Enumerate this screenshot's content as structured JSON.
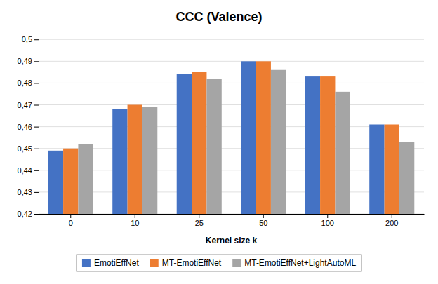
{
  "chart_data": {
    "type": "bar",
    "title": "CCC (Valence)",
    "xlabel": "Kernel size k",
    "categories": [
      0,
      10,
      25,
      50,
      100,
      200
    ],
    "series": [
      {
        "name": "EmotiEffNet",
        "color": "#4472C4",
        "values": [
          0.449,
          0.468,
          0.484,
          0.49,
          0.483,
          0.461
        ]
      },
      {
        "name": "MT-EmotiEffNet",
        "color": "#ED7D31",
        "values": [
          0.45,
          0.47,
          0.485,
          0.49,
          0.483,
          0.461
        ]
      },
      {
        "name": "MT-EmotiEffNet+LightAutoML",
        "color": "#A5A5A5",
        "values": [
          0.452,
          0.469,
          0.482,
          0.486,
          0.476,
          0.453
        ]
      }
    ],
    "ylim": [
      0.42,
      0.502
    ],
    "yticks": [
      {
        "value": 0.42,
        "label": "0,42"
      },
      {
        "value": 0.43,
        "label": "0,43"
      },
      {
        "value": 0.44,
        "label": "0,44"
      },
      {
        "value": 0.45,
        "label": "0,45"
      },
      {
        "value": 0.46,
        "label": "0,46"
      },
      {
        "value": 0.47,
        "label": "0,47"
      },
      {
        "value": 0.48,
        "label": "0,48"
      },
      {
        "value": 0.49,
        "label": "0,49"
      },
      {
        "value": 0.5,
        "label": "0,5"
      }
    ],
    "grid": true,
    "legend": "bottom"
  }
}
